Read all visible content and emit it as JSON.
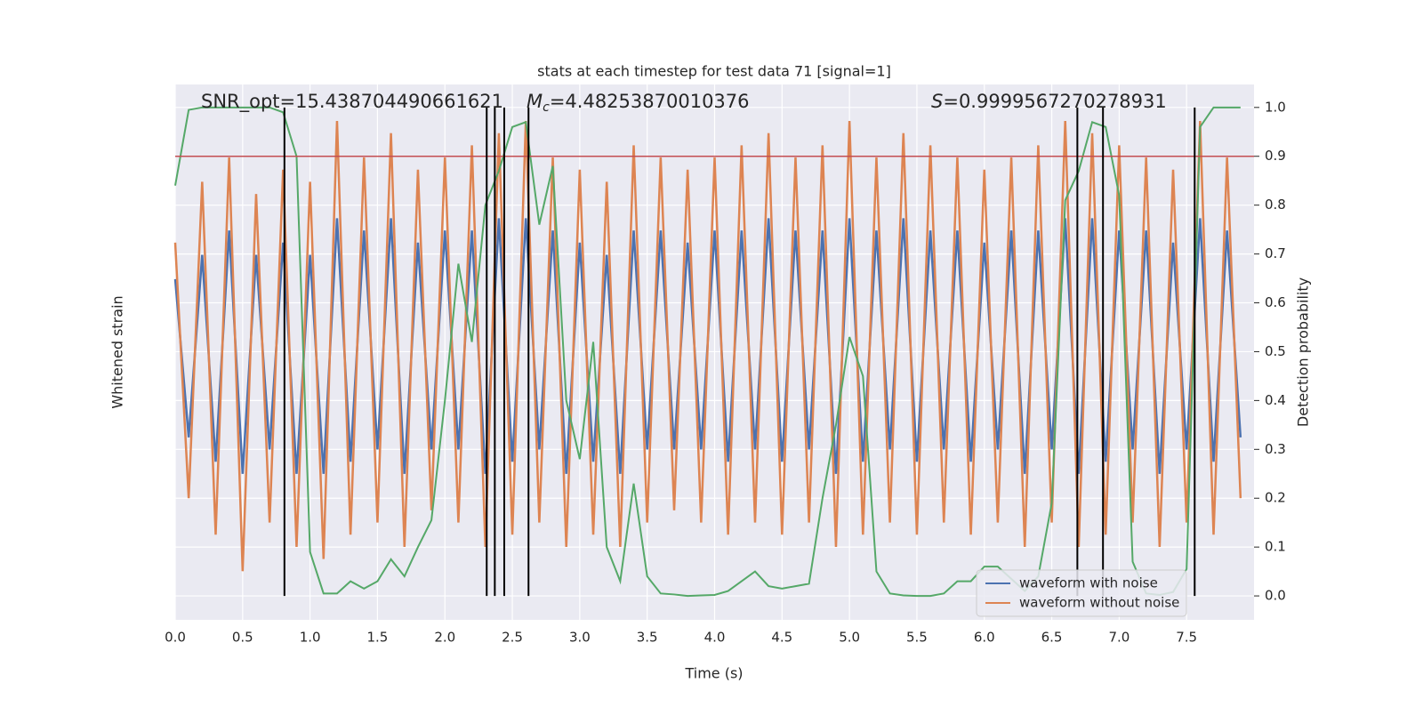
{
  "chart_data": {
    "type": "line",
    "title": "stats at each timestep for test data 71 [signal=1]",
    "xlabel": "Time (s)",
    "ylabel": "Whitened strain",
    "y2label": "Detection probability",
    "annotations": {
      "snr": "SNR_opt=15.438704490661621",
      "chirp_mass": {
        "symbol": "M",
        "subscript": "c",
        "text": "=4.48253870010376"
      },
      "score": {
        "symbol": "S",
        "text": "=0.9999567270278931"
      }
    },
    "xlim": [
      0,
      8
    ],
    "ylim": [
      -1.1,
      1.1
    ],
    "y2lim": [
      -0.049,
      1.047
    ],
    "grid": true,
    "legend": "lower right",
    "xticks": [
      {
        "value": 0,
        "label": "0.0"
      },
      {
        "value": 0.5,
        "label": "0.5"
      },
      {
        "value": 1,
        "label": "1.0"
      },
      {
        "value": 1.5,
        "label": "1.5"
      },
      {
        "value": 2,
        "label": "2.0"
      },
      {
        "value": 2.5,
        "label": "2.5"
      },
      {
        "value": 3,
        "label": "3.0"
      },
      {
        "value": 3.5,
        "label": "3.5"
      },
      {
        "value": 4,
        "label": "4.0"
      },
      {
        "value": 4.5,
        "label": "4.5"
      },
      {
        "value": 5,
        "label": "5.0"
      },
      {
        "value": 5.5,
        "label": "5.5"
      },
      {
        "value": 6,
        "label": "6.0"
      },
      {
        "value": 6.5,
        "label": "6.5"
      },
      {
        "value": 7,
        "label": "7.0"
      },
      {
        "value": 7.5,
        "label": "7.5"
      }
    ],
    "y2ticks": [
      {
        "value": 0,
        "label": "0.0"
      },
      {
        "value": 0.1,
        "label": "0.1"
      },
      {
        "value": 0.2,
        "label": "0.2"
      },
      {
        "value": 0.3,
        "label": "0.3"
      },
      {
        "value": 0.4,
        "label": "0.4"
      },
      {
        "value": 0.5,
        "label": "0.5"
      },
      {
        "value": 0.6,
        "label": "0.6"
      },
      {
        "value": 0.7,
        "label": "0.7"
      },
      {
        "value": 0.8,
        "label": "0.8"
      },
      {
        "value": 0.9,
        "label": "0.9"
      },
      {
        "value": 1,
        "label": "1.0"
      }
    ],
    "x": [
      0,
      0.1,
      0.2,
      0.3,
      0.4,
      0.5,
      0.6,
      0.7,
      0.8,
      0.9,
      1,
      1.1,
      1.2,
      1.3,
      1.4,
      1.5,
      1.6,
      1.7,
      1.8,
      1.9,
      2,
      2.1,
      2.2,
      2.3,
      2.4,
      2.5,
      2.6,
      2.7,
      2.8,
      2.9,
      3,
      3.1,
      3.2,
      3.3,
      3.4,
      3.5,
      3.6,
      3.7,
      3.8,
      3.9,
      4,
      4.1,
      4.2,
      4.3,
      4.4,
      4.5,
      4.6,
      4.7,
      4.8,
      4.9,
      5,
      5.1,
      5.2,
      5.3,
      5.4,
      5.5,
      5.6,
      5.7,
      5.8,
      5.9,
      6,
      6.1,
      6.2,
      6.3,
      6.4,
      6.5,
      6.6,
      6.7,
      6.8,
      6.9,
      7,
      7.1,
      7.2,
      7.3,
      7.4,
      7.5,
      7.6,
      7.7,
      7.8,
      7.9
    ],
    "series": [
      {
        "name": "waveform with noise",
        "color": "#4c72b0",
        "values": [
          0.3,
          -0.35,
          0.4,
          -0.45,
          0.5,
          -0.5,
          0.4,
          -0.4,
          0.45,
          -0.5,
          0.4,
          -0.5,
          0.55,
          -0.45,
          0.5,
          -0.4,
          0.55,
          -0.5,
          0.45,
          -0.4,
          0.5,
          -0.4,
          0.5,
          -0.5,
          0.55,
          -0.45,
          0.55,
          -0.4,
          0.5,
          -0.5,
          0.45,
          -0.45,
          0.4,
          -0.5,
          0.5,
          -0.4,
          0.5,
          -0.4,
          0.45,
          -0.4,
          0.5,
          -0.45,
          0.5,
          -0.4,
          0.55,
          -0.45,
          0.5,
          -0.4,
          0.5,
          -0.5,
          0.55,
          -0.45,
          0.5,
          -0.4,
          0.55,
          -0.45,
          0.5,
          -0.4,
          0.5,
          -0.45,
          0.45,
          -0.4,
          0.5,
          -0.5,
          0.5,
          -0.4,
          0.55,
          -0.5,
          0.55,
          -0.45,
          0.5,
          -0.4,
          0.5,
          -0.5,
          0.45,
          -0.4,
          0.55,
          -0.45,
          0.5,
          -0.35
        ]
      },
      {
        "name": "waveform without noise",
        "color": "#dd8452",
        "values": [
          0.45,
          -0.6,
          0.7,
          -0.75,
          0.8,
          -0.9,
          0.65,
          -0.7,
          0.75,
          -0.8,
          0.7,
          -0.85,
          0.95,
          -0.75,
          0.8,
          -0.7,
          0.9,
          -0.8,
          0.75,
          -0.65,
          0.8,
          -0.7,
          0.85,
          -0.8,
          0.9,
          -0.75,
          0.95,
          -0.7,
          0.8,
          -0.8,
          0.75,
          -0.75,
          0.7,
          -0.8,
          0.85,
          -0.7,
          0.8,
          -0.65,
          0.75,
          -0.7,
          0.8,
          -0.75,
          0.85,
          -0.7,
          0.9,
          -0.75,
          0.8,
          -0.7,
          0.85,
          -0.8,
          0.95,
          -0.75,
          0.8,
          -0.7,
          0.9,
          -0.75,
          0.85,
          -0.7,
          0.8,
          -0.75,
          0.75,
          -0.7,
          0.8,
          -0.8,
          0.85,
          -0.7,
          0.95,
          -0.8,
          0.9,
          -0.75,
          0.85,
          -0.7,
          0.8,
          -0.8,
          0.75,
          -0.7,
          0.95,
          -0.75,
          0.8,
          -0.6
        ]
      },
      {
        "color": "#55a868",
        "axis": "y2",
        "values": [
          0.84,
          0.995,
          1,
          1,
          1,
          1,
          1,
          1,
          0.99,
          0.9,
          0.09,
          0.005,
          0.005,
          0.03,
          0.015,
          0.03,
          0.075,
          0.04,
          0.1,
          0.155,
          0.4,
          0.68,
          0.52,
          0.8,
          0.87,
          0.96,
          0.97,
          0.76,
          0.88,
          0.4,
          0.28,
          0.52,
          0.1,
          0.03,
          0.23,
          0.04,
          0.005,
          0.003,
          0,
          0.001,
          0.002,
          0.01,
          0.03,
          0.05,
          0.02,
          0.015,
          0.02,
          0.025,
          0.2,
          0.35,
          0.53,
          0.45,
          0.05,
          0.005,
          0.001,
          0,
          0,
          0.005,
          0.03,
          0.03,
          0.06,
          0.06,
          0.035,
          0.01,
          0.04,
          0.19,
          0.81,
          0.87,
          0.97,
          0.96,
          0.82,
          0.07,
          0.005,
          0.002,
          0.008,
          0.055,
          0.96,
          1,
          1,
          1
        ]
      }
    ],
    "threshold": {
      "value": 0.9,
      "color": "#c44e52"
    },
    "vlines": {
      "color": "#000000",
      "x": [
        0.81,
        2.31,
        2.37,
        2.44,
        2.62,
        6.69,
        6.88,
        7.56
      ]
    }
  }
}
